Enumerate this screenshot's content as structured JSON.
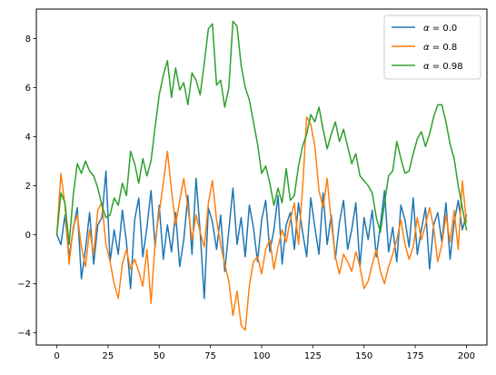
{
  "chart_data": {
    "type": "line",
    "title": "",
    "xlabel": "",
    "ylabel": "",
    "xlim": [
      -10,
      210
    ],
    "ylim": [
      -4.5,
      9.2
    ],
    "xticks": [
      0,
      25,
      50,
      75,
      100,
      125,
      150,
      175,
      200
    ],
    "yticks": [
      -4,
      -2,
      0,
      2,
      4,
      6,
      8
    ],
    "grid": false,
    "legend_placement": "top-right",
    "series": [
      {
        "name": "α = 0.0",
        "label_prefix": "α",
        "label_value": "= 0.0",
        "color": "#1f77b4",
        "x": [
          0,
          2,
          4,
          6,
          8,
          10,
          12,
          14,
          16,
          18,
          20,
          22,
          24,
          26,
          28,
          30,
          32,
          34,
          36,
          38,
          40,
          42,
          44,
          46,
          48,
          50,
          52,
          54,
          56,
          58,
          60,
          62,
          64,
          66,
          68,
          70,
          72,
          74,
          76,
          78,
          80,
          82,
          84,
          86,
          88,
          90,
          92,
          94,
          96,
          98,
          100,
          102,
          104,
          106,
          108,
          110,
          112,
          114,
          116,
          118,
          120,
          122,
          124,
          126,
          128,
          130,
          132,
          134,
          136,
          138,
          140,
          142,
          144,
          146,
          148,
          150,
          152,
          154,
          156,
          158,
          160,
          162,
          164,
          166,
          168,
          170,
          172,
          174,
          176,
          178,
          180,
          182,
          184,
          186,
          188,
          190,
          192,
          194,
          196,
          198,
          200
        ],
        "y": [
          0.0,
          -0.4,
          0.8,
          -0.9,
          0.2,
          1.1,
          -1.8,
          -0.6,
          0.9,
          -1.2,
          0.4,
          0.7,
          2.6,
          -1.1,
          0.2,
          -0.8,
          1.0,
          -0.3,
          -2.2,
          0.6,
          1.5,
          -0.9,
          0.3,
          1.8,
          -0.5,
          1.2,
          -1.0,
          0.4,
          -0.7,
          0.9,
          -1.3,
          -0.2,
          1.6,
          -0.8,
          2.3,
          0.1,
          -2.6,
          1.1,
          0.5,
          -0.6,
          0.8,
          -1.5,
          0.2,
          1.9,
          -0.4,
          0.7,
          -0.9,
          1.2,
          0.3,
          -1.1,
          0.6,
          1.4,
          -0.7,
          0.2,
          1.6,
          -1.2,
          0.4,
          0.9,
          -0.6,
          1.3,
          0.1,
          -0.9,
          1.5,
          0.3,
          -0.8,
          1.7,
          -0.4,
          0.8,
          -1.0,
          0.5,
          1.4,
          -0.6,
          0.2,
          1.3,
          -1.3,
          0.7,
          -0.2,
          1.0,
          -0.9,
          0.4,
          1.8,
          -0.7,
          0.3,
          -1.1,
          1.2,
          0.6,
          -0.5,
          1.5,
          -0.8,
          0.2,
          1.1,
          -1.4,
          0.4,
          0.9,
          -0.3,
          1.3,
          -1.0,
          0.5,
          1.4,
          0.2,
          0.8
        ]
      },
      {
        "name": "α = 0.8",
        "label_prefix": "α",
        "label_value": "= 0.8",
        "color": "#ff7f0e",
        "x": [
          0,
          2,
          4,
          6,
          8,
          10,
          12,
          14,
          16,
          18,
          20,
          22,
          24,
          26,
          28,
          30,
          32,
          34,
          36,
          38,
          40,
          42,
          44,
          46,
          48,
          50,
          52,
          54,
          56,
          58,
          60,
          62,
          64,
          66,
          68,
          70,
          72,
          74,
          76,
          78,
          80,
          82,
          84,
          86,
          88,
          90,
          92,
          94,
          96,
          98,
          100,
          102,
          104,
          106,
          108,
          110,
          112,
          114,
          116,
          118,
          120,
          122,
          124,
          126,
          128,
          130,
          132,
          134,
          136,
          138,
          140,
          142,
          144,
          146,
          148,
          150,
          152,
          154,
          156,
          158,
          160,
          162,
          164,
          166,
          168,
          170,
          172,
          174,
          176,
          178,
          180,
          182,
          184,
          186,
          188,
          190,
          192,
          194,
          196,
          198,
          200
        ],
        "y": [
          0.0,
          2.5,
          1.2,
          -1.2,
          0.3,
          0.8,
          -0.5,
          -1.3,
          0.2,
          -0.8,
          1.0,
          1.3,
          -0.4,
          -1.1,
          -2.0,
          -2.6,
          -1.2,
          -0.6,
          -1.4,
          -1.0,
          -1.5,
          -2.1,
          -0.6,
          -2.8,
          -0.3,
          0.9,
          2.1,
          3.4,
          1.8,
          0.4,
          1.4,
          2.3,
          1.1,
          -0.2,
          0.8,
          0.1,
          -0.5,
          1.3,
          2.2,
          0.6,
          -0.4,
          -1.2,
          -1.9,
          -3.3,
          -2.3,
          -3.7,
          -3.9,
          -2.1,
          -1.1,
          -0.9,
          -1.6,
          -0.6,
          -0.2,
          -1.4,
          -0.5,
          0.2,
          -0.3,
          0.6,
          1.3,
          -0.4,
          1.9,
          4.8,
          4.5,
          3.6,
          1.8,
          1.1,
          2.3,
          0.5,
          -0.9,
          -1.6,
          -0.8,
          -1.1,
          -1.5,
          -0.7,
          -1.3,
          -2.2,
          -1.9,
          -1.2,
          -0.6,
          -1.5,
          -2.0,
          -1.3,
          -0.8,
          -0.2,
          0.6,
          -0.4,
          -1.0,
          -0.5,
          0.7,
          -0.2,
          0.4,
          1.1,
          0.3,
          -1.1,
          -0.4,
          0.8,
          -0.3,
          1.0,
          -0.6,
          2.2,
          0.5
        ]
      },
      {
        "name": "α = 0.98",
        "label_prefix": "α",
        "label_value": "= 0.98",
        "color": "#2ca02c",
        "x": [
          0,
          2,
          4,
          6,
          8,
          10,
          12,
          14,
          16,
          18,
          20,
          22,
          24,
          26,
          28,
          30,
          32,
          34,
          36,
          38,
          40,
          42,
          44,
          46,
          48,
          50,
          52,
          54,
          56,
          58,
          60,
          62,
          64,
          66,
          68,
          70,
          72,
          74,
          76,
          78,
          80,
          82,
          84,
          86,
          88,
          90,
          92,
          94,
          96,
          98,
          100,
          102,
          104,
          106,
          108,
          110,
          112,
          114,
          116,
          118,
          120,
          122,
          124,
          126,
          128,
          130,
          132,
          134,
          136,
          138,
          140,
          142,
          144,
          146,
          148,
          150,
          152,
          154,
          156,
          158,
          160,
          162,
          164,
          166,
          168,
          170,
          172,
          174,
          176,
          178,
          180,
          182,
          184,
          186,
          188,
          190,
          192,
          194,
          196,
          198,
          200
        ],
        "y": [
          0.0,
          1.7,
          1.3,
          -0.4,
          1.6,
          2.9,
          2.5,
          3.0,
          2.6,
          2.4,
          1.9,
          1.2,
          0.7,
          0.8,
          1.5,
          1.2,
          2.1,
          1.6,
          3.4,
          2.9,
          2.1,
          3.1,
          2.4,
          3.0,
          4.4,
          5.7,
          6.5,
          7.1,
          5.6,
          6.8,
          5.9,
          6.2,
          5.3,
          6.6,
          6.3,
          5.7,
          7.0,
          8.4,
          8.6,
          6.1,
          6.3,
          5.2,
          6.0,
          8.7,
          8.5,
          6.9,
          6.0,
          5.5,
          4.6,
          3.7,
          2.5,
          2.8,
          2.1,
          1.2,
          1.9,
          1.3,
          2.7,
          1.4,
          1.6,
          2.8,
          3.6,
          4.1,
          4.9,
          4.6,
          5.2,
          4.3,
          3.5,
          4.1,
          4.6,
          3.8,
          4.3,
          3.6,
          2.9,
          3.3,
          2.4,
          2.2,
          2.0,
          1.7,
          0.7,
          0.1,
          1.3,
          2.4,
          2.6,
          3.8,
          3.1,
          2.5,
          2.6,
          3.3,
          3.9,
          4.2,
          3.6,
          4.1,
          4.8,
          5.3,
          5.3,
          4.6,
          3.7,
          3.1,
          2.0,
          1.1,
          0.2
        ]
      }
    ]
  }
}
